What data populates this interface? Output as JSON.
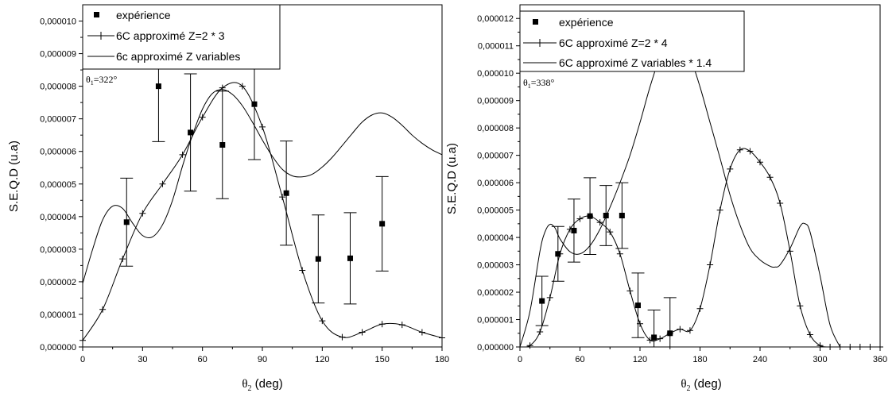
{
  "chart_data": [
    {
      "type": "line",
      "xlabel_base": "θ",
      "xlabel_sub": "2",
      "xlabel_rest": " (deg)",
      "ylabel": "S.E.Q.D (u.a)",
      "xlim": [
        0,
        180
      ],
      "ylim": [
        0,
        1.05e-05
      ],
      "xticks": [
        0,
        30,
        60,
        90,
        120,
        150,
        180
      ],
      "yticks": [
        "0,000000",
        "0,000001",
        "0,000002",
        "0,000003",
        "0,000004",
        "0,000005",
        "0,000006",
        "0,000007",
        "0,000008",
        "0,000009",
        "0,000010"
      ],
      "annotation_base": "θ",
      "annotation_sub": "1",
      "annotation_rest": "=322°",
      "legend_placement": "top-left",
      "series": [
        {
          "name": "expérience",
          "style": "square-markers-with-error-bars",
          "points": [
            {
              "x": 22,
              "y": 3.83e-06,
              "err": 1.35e-06
            },
            {
              "x": 38,
              "y": 8e-06,
              "err": 1.7e-06
            },
            {
              "x": 54,
              "y": 6.58e-06,
              "err": 1.8e-06
            },
            {
              "x": 70,
              "y": 6.2e-06,
              "err": 1.65e-06
            },
            {
              "x": 86,
              "y": 7.45e-06,
              "err": 1.7e-06
            },
            {
              "x": 102,
              "y": 4.72e-06,
              "err": 1.6e-06
            },
            {
              "x": 118,
              "y": 2.7e-06,
              "err": 1.35e-06
            },
            {
              "x": 134,
              "y": 2.72e-06,
              "err": 1.4e-06
            },
            {
              "x": 150,
              "y": 3.78e-06,
              "err": 1.45e-06
            }
          ]
        },
        {
          "name": "6C approximé Z=2 * 3",
          "style": "line-with-plus-markers",
          "x": [
            0,
            10,
            20,
            30,
            40,
            50,
            60,
            70,
            80,
            90,
            100,
            110,
            120,
            130,
            140,
            150,
            160,
            170,
            180
          ],
          "y": [
            2e-07,
            1.15e-06,
            2.7e-06,
            4.1e-06,
            5e-06,
            5.9e-06,
            7.05e-06,
            7.95e-06,
            8e-06,
            6.75e-06,
            4.6e-06,
            2.35e-06,
            8e-07,
            3e-07,
            4.5e-07,
            7e-07,
            6.8e-07,
            4.5e-07,
            2.8e-07
          ]
        },
        {
          "name": "6c approximé Z variables",
          "style": "line",
          "x": [
            0,
            5,
            10,
            15,
            20,
            25,
            30,
            35,
            40,
            45,
            50,
            55,
            60,
            65,
            70,
            75,
            80,
            85,
            90,
            95,
            100,
            105,
            110,
            115,
            120,
            125,
            130,
            135,
            140,
            145,
            150,
            155,
            160,
            165,
            170,
            175,
            180
          ],
          "y": [
            1.95e-06,
            3e-06,
            3.9e-06,
            4.32e-06,
            4.25e-06,
            3.8e-06,
            3.42e-06,
            3.38e-06,
            3.75e-06,
            4.5e-06,
            5.55e-06,
            6.5e-06,
            7.3e-06,
            7.78e-06,
            7.9e-06,
            7.75e-06,
            7.4e-06,
            6.9e-06,
            6.35e-06,
            5.85e-06,
            5.45e-06,
            5.25e-06,
            5.22e-06,
            5.3e-06,
            5.52e-06,
            5.82e-06,
            6.18e-06,
            6.55e-06,
            6.9e-06,
            7.12e-06,
            7.18e-06,
            7.05e-06,
            6.8e-06,
            6.5e-06,
            6.25e-06,
            6.05e-06,
            5.9e-06
          ]
        }
      ]
    },
    {
      "type": "line",
      "xlabel_base": "θ",
      "xlabel_sub": "2",
      "xlabel_rest": " (deg)",
      "ylabel": "S.E.Q.D (u.a)",
      "xlim": [
        0,
        360
      ],
      "ylim": [
        0,
        1.25e-05
      ],
      "xticks": [
        0,
        60,
        120,
        180,
        240,
        300,
        360
      ],
      "yticks": [
        "0,000000",
        "0,000001",
        "0,000002",
        "0,000003",
        "0,000004",
        "0,000005",
        "0,000006",
        "0,000007",
        "0,000008",
        "0,000009",
        "0,000010",
        "0,000011",
        "0,000012"
      ],
      "annotation_base": "θ",
      "annotation_sub": "1",
      "annotation_rest": "=338°",
      "legend_placement": "top-left",
      "series": [
        {
          "name": "expérience",
          "style": "square-markers-with-error-bars",
          "points": [
            {
              "x": 22,
              "y": 1.68e-06,
              "err": 9e-07
            },
            {
              "x": 38,
              "y": 3.4e-06,
              "err": 1e-06
            },
            {
              "x": 54,
              "y": 4.25e-06,
              "err": 1.15e-06
            },
            {
              "x": 70,
              "y": 4.78e-06,
              "err": 1.4e-06
            },
            {
              "x": 86,
              "y": 4.8e-06,
              "err": 1.1e-06
            },
            {
              "x": 102,
              "y": 4.8e-06,
              "err": 1.2e-06
            },
            {
              "x": 118,
              "y": 1.52e-06,
              "err": 1.18e-06
            },
            {
              "x": 134,
              "y": 3.5e-07,
              "err": 1e-06
            },
            {
              "x": 150,
              "y": 5e-07,
              "err": 1.3e-06
            }
          ]
        },
        {
          "name": "6C approximé Z=2 * 4",
          "style": "line-with-plus-markers",
          "x": [
            0,
            10,
            20,
            30,
            40,
            50,
            60,
            70,
            80,
            90,
            100,
            110,
            120,
            130,
            140,
            150,
            160,
            170,
            180,
            190,
            200,
            210,
            220,
            230,
            240,
            250,
            260,
            270,
            280,
            290,
            300,
            310,
            320,
            330,
            340,
            350,
            360
          ],
          "y": [
            0.0,
            5e-08,
            5.5e-07,
            1.8e-06,
            3.4e-06,
            4.3e-06,
            4.68e-06,
            4.78e-06,
            4.55e-06,
            4.2e-06,
            3.4e-06,
            2.05e-06,
            8.5e-07,
            2.5e-07,
            3e-07,
            5e-07,
            6.5e-07,
            6e-07,
            1.4e-06,
            3e-06,
            5e-06,
            6.5e-06,
            7.2e-06,
            7.15e-06,
            6.75e-06,
            6.2e-06,
            5.25e-06,
            3.5e-06,
            1.5e-06,
            4.5e-07,
            5e-08,
            0.0,
            0.0,
            0.0,
            0.0,
            0.0,
            0.0
          ]
        },
        {
          "name": "6C approximé Z variables * 1.4",
          "style": "line",
          "x": [
            0,
            10,
            20,
            25,
            30,
            35,
            40,
            50,
            60,
            70,
            80,
            90,
            100,
            110,
            120,
            130,
            140,
            150,
            155,
            160,
            170,
            180,
            190,
            200,
            210,
            220,
            230,
            240,
            250,
            255,
            260,
            270,
            280,
            285,
            290,
            300,
            310,
            320
          ],
          "y": [
            0.0,
            1.3e-06,
            3.5e-06,
            4.2e-06,
            4.48e-06,
            4.35e-06,
            3.95e-06,
            3.48e-06,
            3.4e-06,
            3.7e-06,
            4.3e-06,
            5.1e-06,
            6e-06,
            7e-06,
            8.2e-06,
            9.5e-06,
            1.06e-05,
            1.128e-05,
            1.138e-05,
            1.128e-05,
            1.06e-05,
            9.5e-06,
            8.2e-06,
            6.9e-06,
            5.55e-06,
            4.45e-06,
            3.6e-06,
            3.18e-06,
            2.95e-06,
            2.92e-06,
            3e-06,
            3.6e-06,
            4.4e-06,
            4.5e-06,
            4.2e-06,
            2.6e-06,
            8e-07,
            0.0
          ]
        }
      ]
    }
  ]
}
